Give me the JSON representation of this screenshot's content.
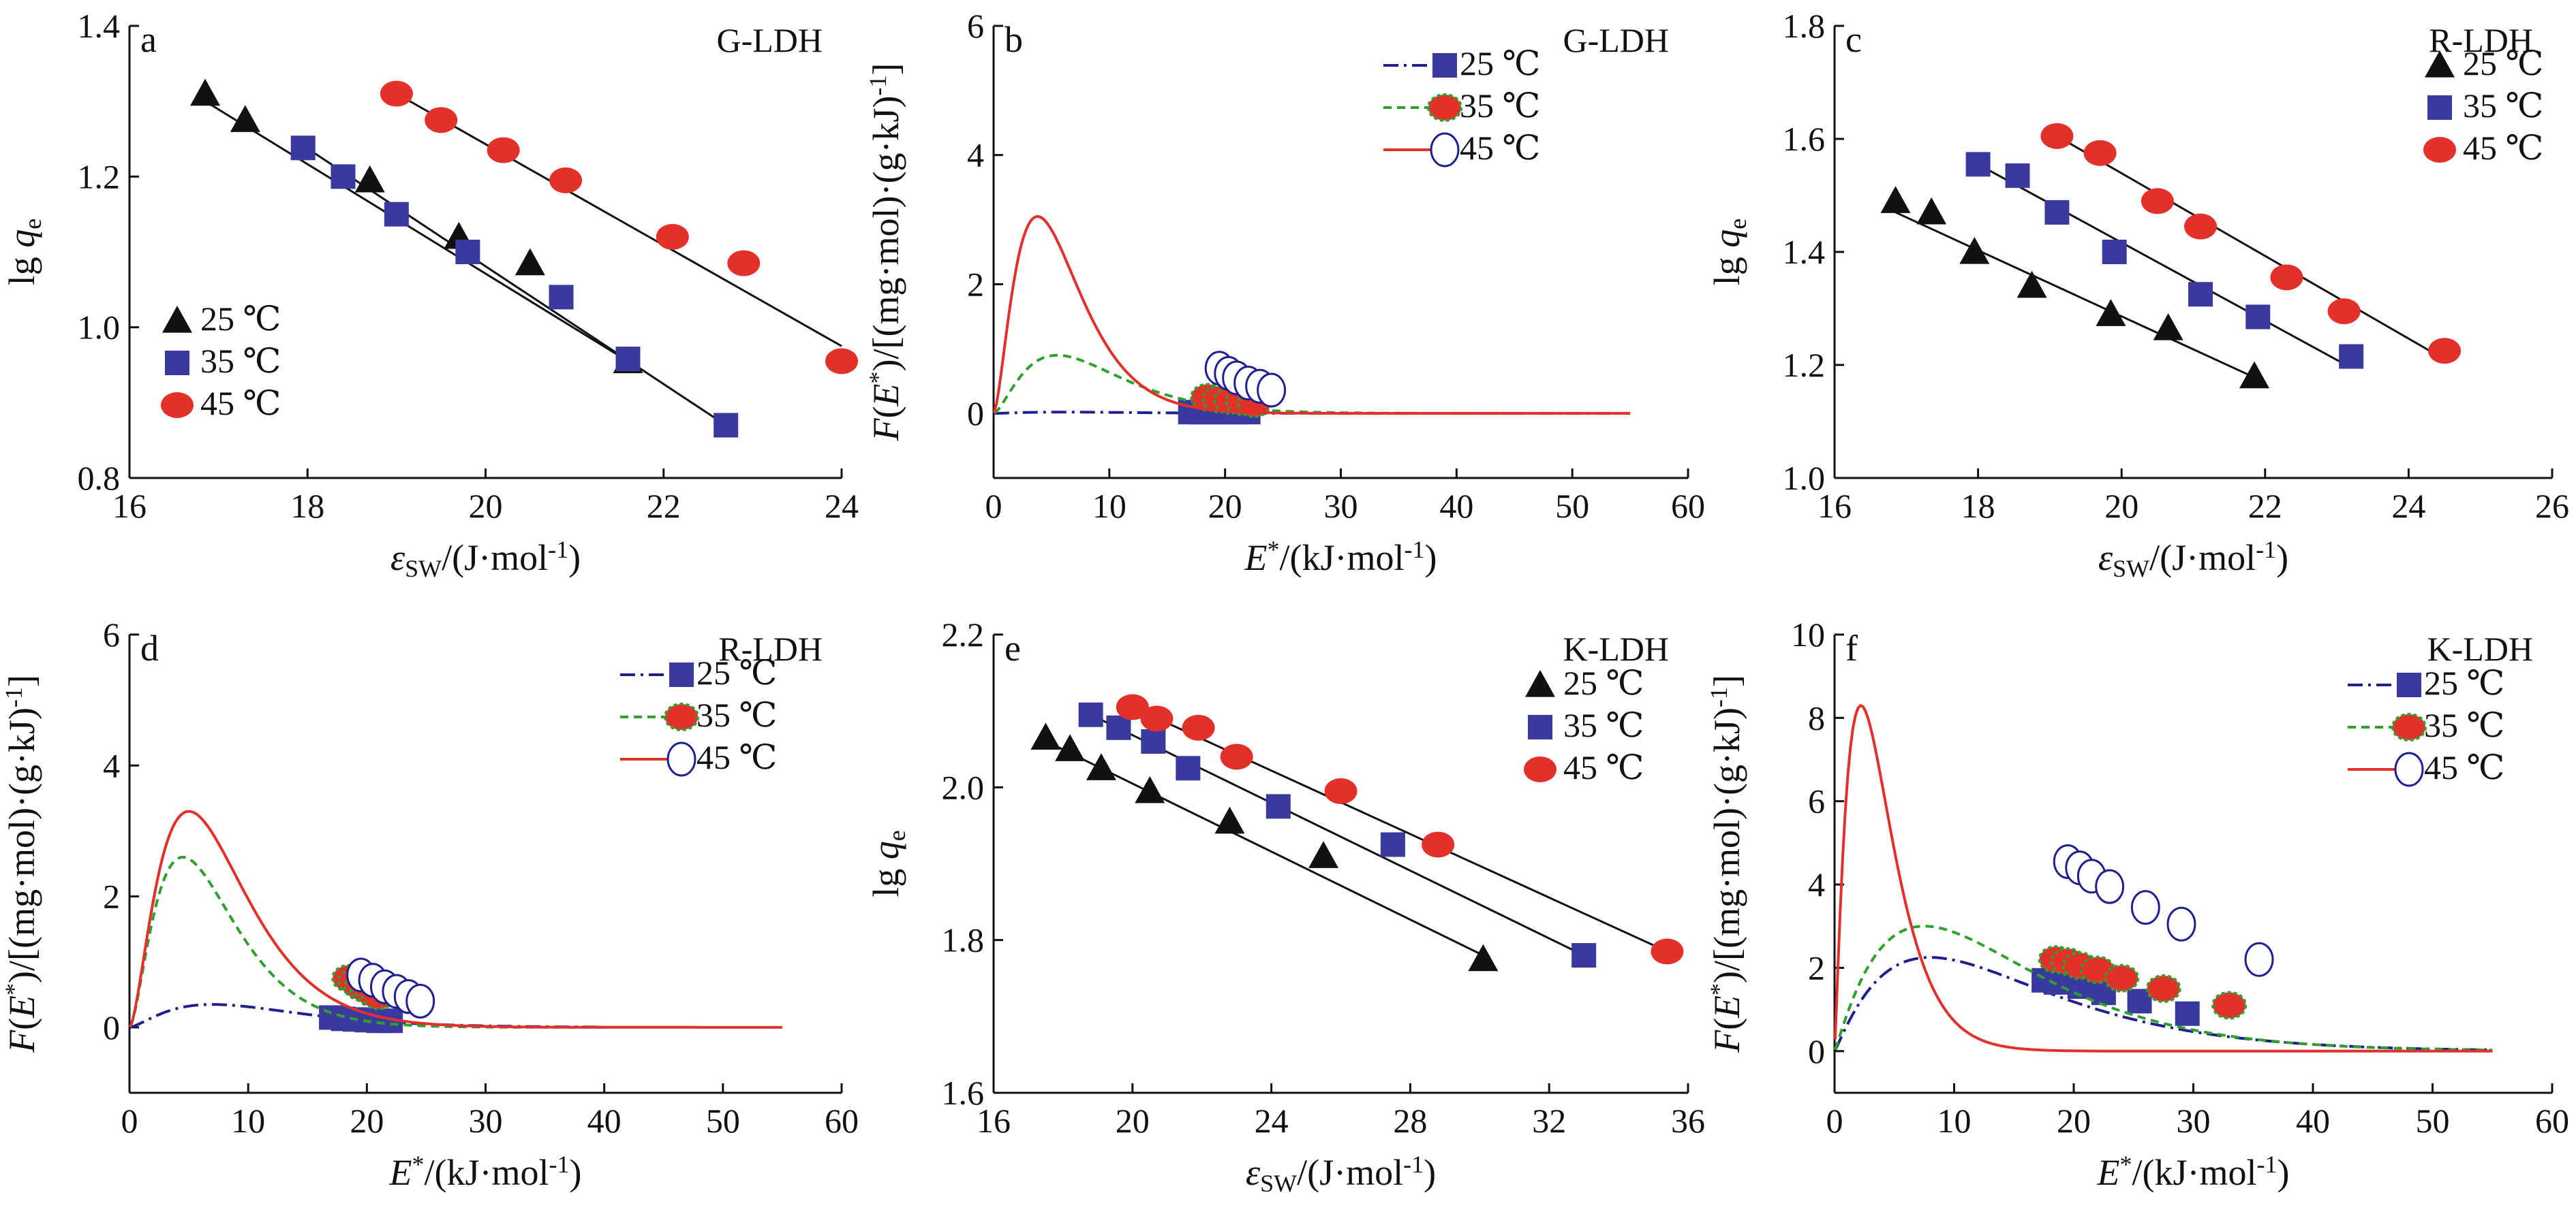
{
  "figure": {
    "colors": {
      "c25_marker": "#111111",
      "c35_marker": "#3a3a9e",
      "c45_marker": "#e3302b",
      "c25_curve": "#1f1f8f",
      "c35_curve": "#2ea02e",
      "c45_curve": "#e3302b",
      "fit_line": "#111111"
    }
  },
  "chart_data": [
    {
      "id": "a",
      "type": "scatter",
      "panel_label": "a",
      "title": "G-LDH",
      "xlabel": {
        "main": "ε",
        "sub": "SW",
        "tail": "/(J·mol",
        "sup": "-1",
        "end": ")"
      },
      "ylabel": "lg qe",
      "xlim": [
        16,
        24
      ],
      "ylim": [
        0.8,
        1.4
      ],
      "xticks": [
        "16",
        "18",
        "20",
        "22",
        "24"
      ],
      "yticks": [
        "0.8",
        "1.0",
        "1.2",
        "1.4"
      ],
      "legend_position": "bottom-left",
      "series": [
        {
          "name": "25 ℃",
          "marker": "triangle",
          "x": [
            16.85,
            17.3,
            18.7,
            19.7,
            20.5,
            21.6
          ],
          "y": [
            1.31,
            1.275,
            1.195,
            1.12,
            1.085,
            0.955
          ],
          "fit": [
            [
              16.85,
              1.3
            ],
            [
              21.6,
              0.955
            ]
          ]
        },
        {
          "name": "35 ℃",
          "marker": "square",
          "x": [
            17.95,
            18.4,
            19.0,
            19.8,
            20.85,
            21.6,
            22.7
          ],
          "y": [
            1.238,
            1.2,
            1.15,
            1.1,
            1.04,
            0.958,
            0.87
          ],
          "fit": [
            [
              17.9,
              1.245
            ],
            [
              22.7,
              0.87
            ]
          ]
        },
        {
          "name": "45 ℃",
          "marker": "circle",
          "x": [
            19.0,
            19.5,
            20.2,
            20.9,
            22.1,
            22.9,
            24.0
          ],
          "y": [
            1.31,
            1.275,
            1.235,
            1.195,
            1.12,
            1.085,
            0.955
          ],
          "fit": [
            [
              19.0,
              1.31
            ],
            [
              24.0,
              0.975
            ]
          ]
        }
      ]
    },
    {
      "id": "b",
      "type": "line",
      "panel_label": "b",
      "title": "G-LDH",
      "xlabel": {
        "main": "E",
        "sup1": "*",
        "tail": "/(kJ·mol",
        "sup": "-1",
        "end": ")"
      },
      "ylabel": "F(E*)/[(mg·mol)·(g·kJ)⁻¹]",
      "xlim": [
        0,
        60
      ],
      "ylim": [
        -1,
        6
      ],
      "xticks": [
        "0",
        "10",
        "20",
        "30",
        "40",
        "50",
        "60"
      ],
      "yticks": [
        "0",
        "2",
        "4",
        "6"
      ],
      "legend_position": "top-right",
      "series": [
        {
          "name": "25 ℃",
          "line": "dashdot",
          "marker": "square",
          "peak": 0.02,
          "mode": 6,
          "shape": 1.5,
          "xmax": 55,
          "points": [
            [
              17,
              0.02
            ],
            [
              18,
              0.02
            ],
            [
              19,
              0.02
            ],
            [
              20,
              0.02
            ],
            [
              21,
              0.02
            ],
            [
              22,
              0.02
            ]
          ]
        },
        {
          "name": "35 ℃",
          "line": "dashed",
          "marker": "circle",
          "peak": 0.9,
          "mode": 5.5,
          "shape": 1.6,
          "xmax": 45,
          "points": [
            [
              18.5,
              0.25
            ],
            [
              19.5,
              0.22
            ],
            [
              20.5,
              0.2
            ],
            [
              21.5,
              0.18
            ],
            [
              22.5,
              0.15
            ]
          ]
        },
        {
          "name": "45 ℃",
          "line": "solid",
          "marker": "circle-open",
          "peak": 3.05,
          "mode": 3.8,
          "shape": 1.7,
          "xmax": 55,
          "points": [
            [
              19.5,
              0.7
            ],
            [
              20.3,
              0.62
            ],
            [
              21.0,
              0.55
            ],
            [
              22.0,
              0.47
            ],
            [
              23.0,
              0.42
            ],
            [
              24.0,
              0.36
            ]
          ]
        }
      ]
    },
    {
      "id": "c",
      "type": "scatter",
      "panel_label": "c",
      "title": "R-LDH",
      "xlabel": {
        "main": "ε",
        "sub": "SW",
        "tail": "/(J·mol",
        "sup": "-1",
        "end": ")"
      },
      "ylabel": "lg qe",
      "xlim": [
        16,
        26
      ],
      "ylim": [
        1.0,
        1.8
      ],
      "xticks": [
        "16",
        "18",
        "20",
        "22",
        "24",
        "26"
      ],
      "yticks": [
        "1.0",
        "1.2",
        "1.4",
        "1.6",
        "1.8"
      ],
      "legend_position": "top-right",
      "series": [
        {
          "name": "25 ℃",
          "marker": "triangle",
          "x": [
            16.85,
            17.35,
            17.95,
            18.75,
            19.85,
            20.65,
            21.85
          ],
          "y": [
            1.49,
            1.47,
            1.4,
            1.34,
            1.29,
            1.265,
            1.18
          ],
          "fit": [
            [
              16.85,
              1.47
            ],
            [
              21.9,
              1.175
            ]
          ]
        },
        {
          "name": "35 ℃",
          "marker": "square",
          "x": [
            18.0,
            18.55,
            19.1,
            19.9,
            21.1,
            21.9,
            23.2
          ],
          "y": [
            1.555,
            1.535,
            1.47,
            1.4,
            1.325,
            1.285,
            1.215
          ],
          "fit": [
            [
              18.0,
              1.555
            ],
            [
              23.2,
              1.195
            ]
          ]
        },
        {
          "name": "45 ℃",
          "marker": "circle",
          "x": [
            19.1,
            19.7,
            20.5,
            21.1,
            22.3,
            23.1,
            24.5
          ],
          "y": [
            1.605,
            1.575,
            1.49,
            1.445,
            1.355,
            1.295,
            1.225
          ],
          "fit": [
            [
              19.1,
              1.605
            ],
            [
              24.5,
              1.21
            ]
          ]
        }
      ]
    },
    {
      "id": "d",
      "type": "line",
      "panel_label": "d",
      "title": "R-LDH",
      "xlabel": {
        "main": "E",
        "sup1": "*",
        "tail": "/(kJ·mol",
        "sup": "-1",
        "end": ")"
      },
      "ylabel": "F(E*)/[(mg·mol)·(g·kJ)⁻¹]",
      "xlim": [
        0,
        60
      ],
      "ylim": [
        -1,
        6
      ],
      "xticks": [
        "0",
        "10",
        "20",
        "30",
        "40",
        "50",
        "60"
      ],
      "yticks": [
        "0",
        "2",
        "4",
        "6"
      ],
      "legend_position": "top-right",
      "series": [
        {
          "name": "25 ℃",
          "line": "dashdot",
          "marker": "square",
          "peak": 0.35,
          "mode": 7,
          "shape": 1.5,
          "xmax": 40,
          "points": [
            [
              17,
              0.15
            ],
            [
              18,
              0.13
            ],
            [
              19,
              0.12
            ],
            [
              20,
              0.11
            ],
            [
              21,
              0.1
            ],
            [
              22,
              0.1
            ]
          ]
        },
        {
          "name": "35 ℃",
          "line": "dashed",
          "marker": "circle",
          "peak": 2.6,
          "mode": 4.5,
          "shape": 1.7,
          "xmax": 40,
          "points": [
            [
              18.5,
              0.75
            ],
            [
              19.0,
              0.7
            ],
            [
              19.5,
              0.62
            ],
            [
              20.0,
              0.58
            ],
            [
              20.5,
              0.52
            ],
            [
              21.0,
              0.48
            ]
          ]
        },
        {
          "name": "45 ℃",
          "line": "solid",
          "marker": "circle-open",
          "peak": 3.3,
          "mode": 5,
          "shape": 1.7,
          "xmax": 55,
          "points": [
            [
              19.5,
              0.8
            ],
            [
              20.5,
              0.72
            ],
            [
              21.5,
              0.62
            ],
            [
              22.5,
              0.55
            ],
            [
              23.5,
              0.47
            ],
            [
              24.5,
              0.4
            ]
          ]
        }
      ]
    },
    {
      "id": "e",
      "type": "scatter",
      "panel_label": "e",
      "title": "K-LDH",
      "xlabel": {
        "main": "ε",
        "sub": "SW",
        "tail": "/(J·mol",
        "sup": "-1",
        "end": ")"
      },
      "ylabel": "lg qe",
      "xlim": [
        16,
        36
      ],
      "ylim": [
        1.6,
        2.2
      ],
      "xticks": [
        "16",
        "20",
        "24",
        "28",
        "32",
        "36"
      ],
      "yticks": [
        "1.6",
        "1.8",
        "2.0",
        "2.2"
      ],
      "legend_position": "top-right",
      "series": [
        {
          "name": "25 ℃",
          "marker": "triangle",
          "x": [
            17.5,
            18.2,
            19.1,
            20.5,
            22.8,
            25.5,
            30.1
          ],
          "y": [
            2.065,
            2.05,
            2.025,
            1.995,
            1.955,
            1.91,
            1.775
          ],
          "fit": [
            [
              17.3,
              2.065
            ],
            [
              30.1,
              1.78
            ]
          ]
        },
        {
          "name": "35 ℃",
          "marker": "square",
          "x": [
            18.8,
            19.6,
            20.6,
            21.6,
            24.2,
            27.5,
            33.0
          ],
          "y": [
            2.095,
            2.078,
            2.06,
            2.025,
            1.975,
            1.925,
            1.78
          ],
          "fit": [
            [
              18.8,
              2.095
            ],
            [
              33.0,
              1.78
            ]
          ]
        },
        {
          "name": "45 ℃",
          "marker": "circle",
          "x": [
            20.0,
            20.7,
            21.9,
            23.0,
            26.0,
            28.8,
            35.4
          ],
          "y": [
            2.105,
            2.09,
            2.078,
            2.04,
            1.995,
            1.925,
            1.785
          ],
          "fit": [
            [
              20.0,
              2.105
            ],
            [
              35.4,
              1.785
            ]
          ]
        }
      ]
    },
    {
      "id": "f",
      "type": "line",
      "panel_label": "f",
      "title": "K-LDH",
      "xlabel": {
        "main": "E",
        "sup1": "*",
        "tail": "/(kJ·mol",
        "sup": "-1",
        "end": ")"
      },
      "ylabel": "F(E*)/[(mg·mol)·(g·kJ)⁻¹]",
      "xlim": [
        0,
        60
      ],
      "ylim": [
        -1,
        10
      ],
      "xticks": [
        "0",
        "10",
        "20",
        "30",
        "40",
        "50",
        "60"
      ],
      "yticks": [
        "0",
        "2",
        "4",
        "6",
        "8",
        "10"
      ],
      "legend_position": "top-right",
      "series": [
        {
          "name": "25 ℃",
          "line": "dashdot",
          "marker": "square",
          "peak": 2.25,
          "mode": 8,
          "shape": 1.1,
          "xmax": 55,
          "points": [
            [
              17.5,
              1.7
            ],
            [
              18.5,
              1.65
            ],
            [
              20.5,
              1.55
            ],
            [
              22.5,
              1.4
            ],
            [
              25.5,
              1.2
            ],
            [
              29.5,
              0.9
            ]
          ]
        },
        {
          "name": "35 ℃",
          "line": "dashed",
          "marker": "circle",
          "peak": 3.0,
          "mode": 7.5,
          "shape": 1.1,
          "xmax": 55,
          "points": [
            [
              18.5,
              2.2
            ],
            [
              19.5,
              2.15
            ],
            [
              20.5,
              2.05
            ],
            [
              22.0,
              1.95
            ],
            [
              24.0,
              1.75
            ],
            [
              27.5,
              1.5
            ],
            [
              33.0,
              1.1
            ]
          ]
        },
        {
          "name": "45 ℃",
          "line": "solid",
          "marker": "circle-open",
          "peak": 8.3,
          "mode": 2.2,
          "shape": 1.2,
          "xmax": 55,
          "points": [
            [
              19.5,
              4.55
            ],
            [
              20.5,
              4.4
            ],
            [
              21.5,
              4.2
            ],
            [
              23.0,
              3.95
            ],
            [
              26.0,
              3.45
            ],
            [
              29.0,
              3.05
            ],
            [
              35.5,
              2.2
            ]
          ]
        }
      ]
    }
  ]
}
